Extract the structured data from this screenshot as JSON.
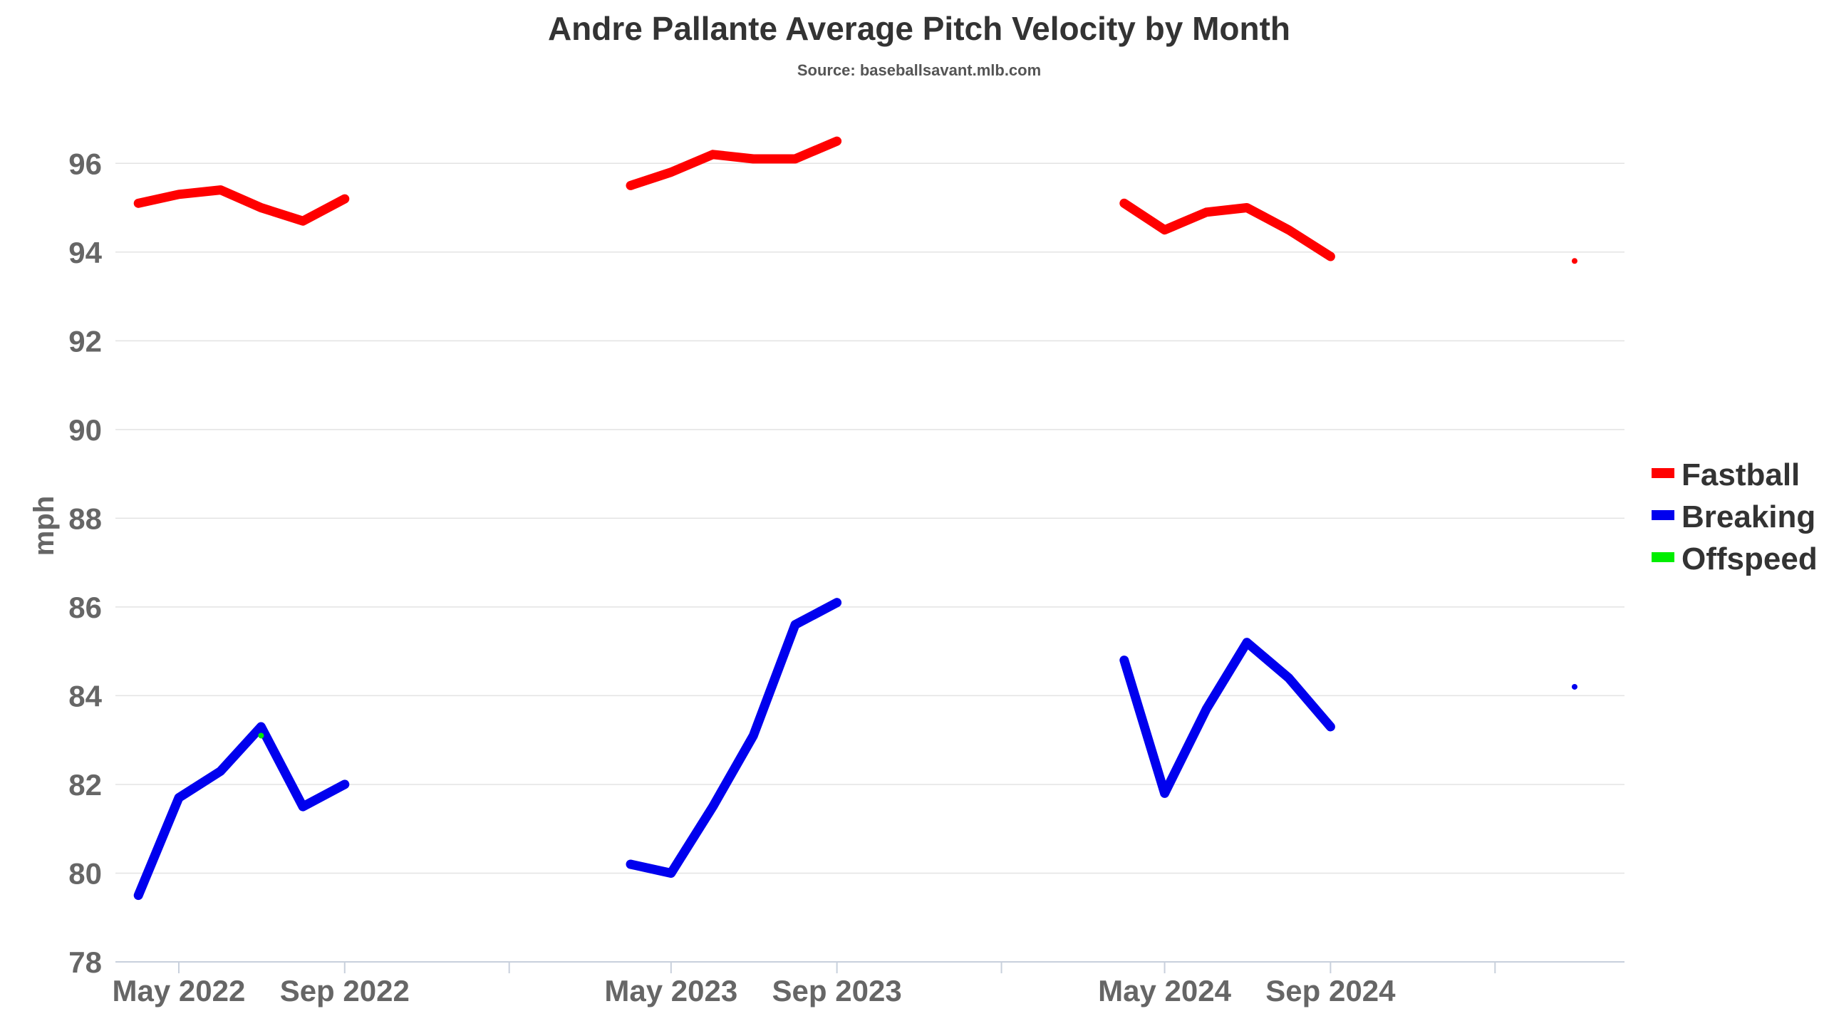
{
  "chart_data": {
    "type": "line",
    "title": "Andre Pallante Average Pitch Velocity by Month",
    "subtitle": "Source: baseballsavant.mlb.com",
    "ylabel": "mph",
    "xlabel": "",
    "ylim": [
      78,
      97
    ],
    "yticks": [
      78,
      80,
      82,
      84,
      86,
      88,
      90,
      92,
      94,
      96
    ],
    "xlim": [
      "2022-03-15",
      "2025-04-07"
    ],
    "xtick_labels": [
      {
        "date": "2022-05-01",
        "label": "May 2022"
      },
      {
        "date": "2022-09-01",
        "label": "Sep 2022"
      },
      {
        "date": "2023-05-01",
        "label": "May 2023"
      },
      {
        "date": "2023-09-01",
        "label": "Sep 2023"
      },
      {
        "date": "2024-05-01",
        "label": "May 2024"
      },
      {
        "date": "2024-09-01",
        "label": "Sep 2024"
      }
    ],
    "xtick_marks_unlabeled": [
      "2023-01-01",
      "2024-01-01",
      "2025-01-01"
    ],
    "grid": true,
    "legend_position": "right",
    "series": [
      {
        "name": "Fastball",
        "color": "#ff0000",
        "segments": [
          {
            "x": [
              "2022-04-01",
              "2022-05-01",
              "2022-06-01",
              "2022-07-01",
              "2022-08-01",
              "2022-09-01"
            ],
            "y": [
              95.1,
              95.3,
              95.4,
              95.0,
              94.7,
              95.2
            ]
          },
          {
            "x": [
              "2023-04-01",
              "2023-05-01",
              "2023-06-01",
              "2023-07-01",
              "2023-08-01",
              "2023-09-01"
            ],
            "y": [
              95.5,
              95.8,
              96.2,
              96.1,
              96.1,
              96.5
            ]
          },
          {
            "x": [
              "2024-04-01",
              "2024-05-01",
              "2024-06-01",
              "2024-07-01",
              "2024-08-01",
              "2024-09-01"
            ],
            "y": [
              95.1,
              94.5,
              94.9,
              95.0,
              94.5,
              93.9
            ]
          },
          {
            "x": [
              "2025-03-01"
            ],
            "y": [
              93.8
            ]
          }
        ]
      },
      {
        "name": "Breaking",
        "color": "#0000ee",
        "segments": [
          {
            "x": [
              "2022-04-01",
              "2022-05-01",
              "2022-06-01",
              "2022-07-01",
              "2022-08-01",
              "2022-09-01"
            ],
            "y": [
              79.5,
              81.7,
              82.3,
              83.3,
              81.5,
              82.0
            ]
          },
          {
            "x": [
              "2023-04-01",
              "2023-05-01",
              "2023-06-01",
              "2023-07-01",
              "2023-08-01",
              "2023-09-01"
            ],
            "y": [
              80.2,
              80.0,
              81.5,
              83.1,
              85.6,
              86.1
            ]
          },
          {
            "x": [
              "2024-04-01",
              "2024-05-01",
              "2024-06-01",
              "2024-07-01",
              "2024-08-01",
              "2024-09-01"
            ],
            "y": [
              84.8,
              81.8,
              83.7,
              85.2,
              84.4,
              83.3
            ]
          },
          {
            "x": [
              "2025-03-01"
            ],
            "y": [
              84.2
            ]
          }
        ]
      },
      {
        "name": "Offspeed",
        "color": "#00ee00",
        "segments": [
          {
            "x": [
              "2022-07-01"
            ],
            "y": [
              83.1
            ]
          }
        ]
      }
    ]
  }
}
